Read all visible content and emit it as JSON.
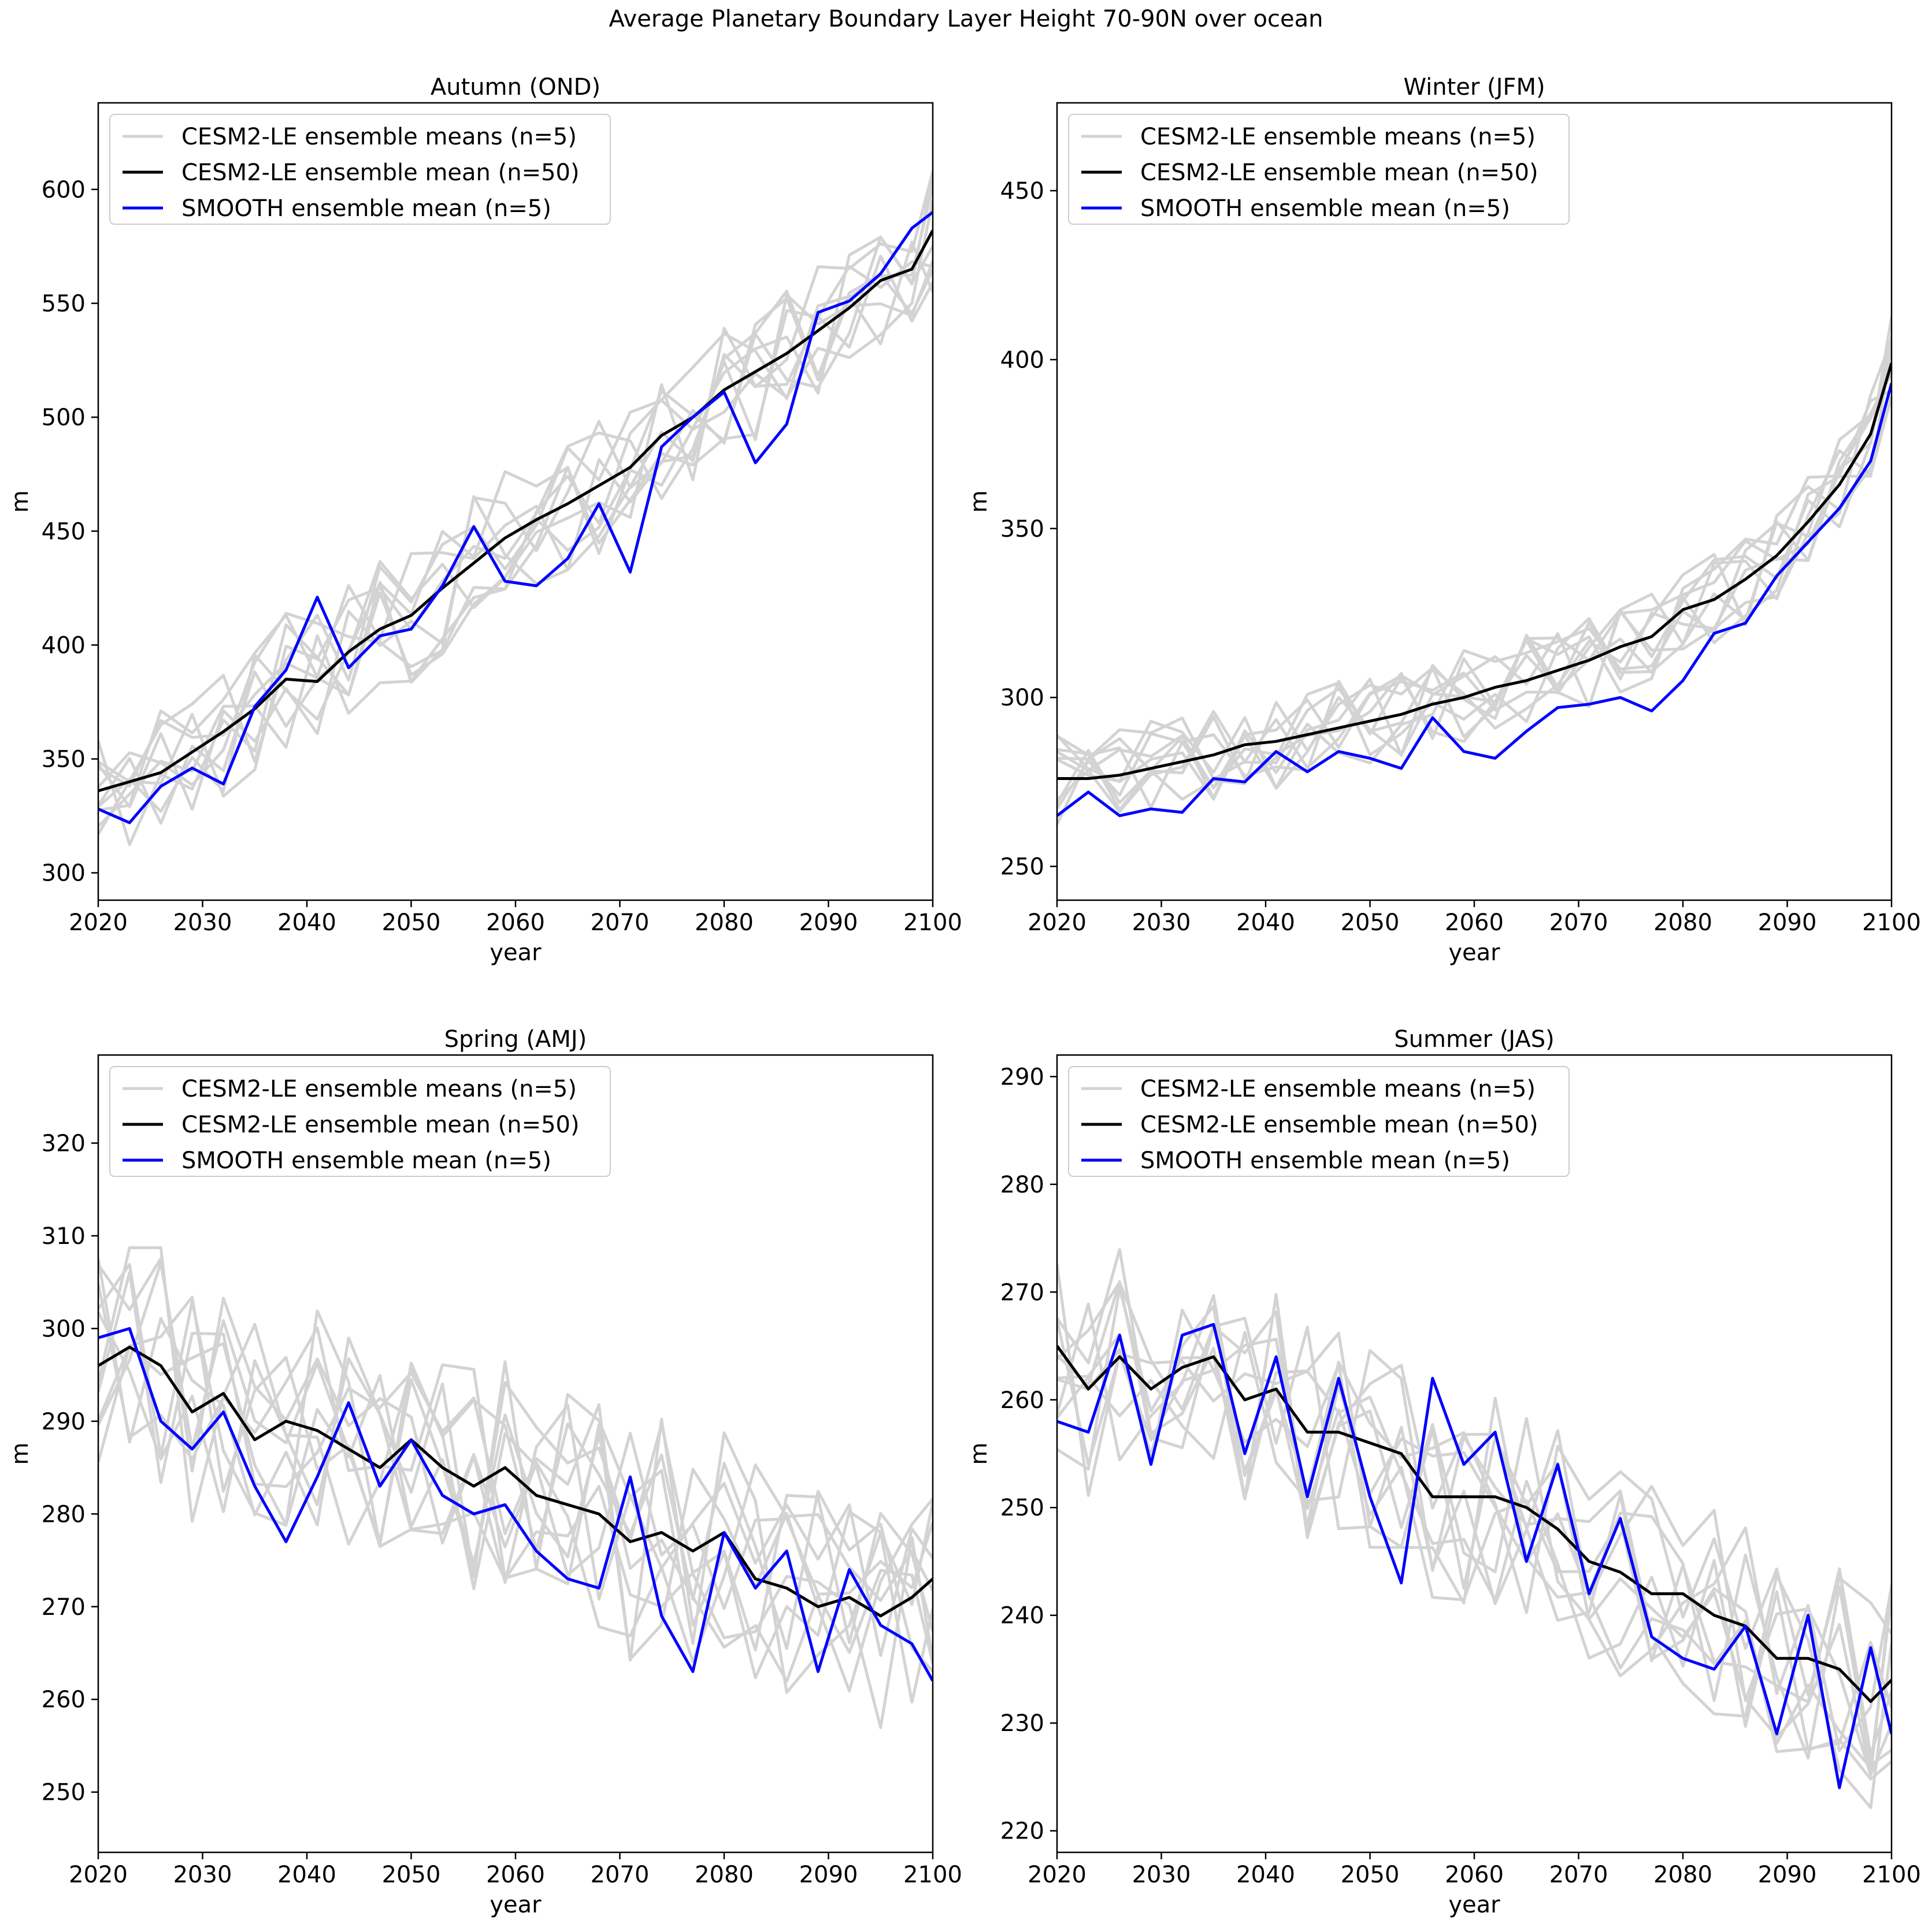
{
  "figure": {
    "title": "Average Planetary Boundary Layer Height 70-90N over ocean"
  },
  "chart_data": [
    {
      "type": "line",
      "title": "Autumn (OND)",
      "xlabel": "year",
      "ylabel": "m",
      "xlim": [
        2020,
        2100
      ],
      "ylim": [
        288,
        638
      ],
      "xticks": [
        "2020",
        "2030",
        "2040",
        "2050",
        "2060",
        "2070",
        "2080",
        "2090",
        "2100"
      ],
      "yticks": [
        "300",
        "350",
        "400",
        "450",
        "500",
        "550",
        "600"
      ],
      "legend": {
        "placement": "upper-left",
        "entries": [
          "CESM2-LE ensemble means (n=5)",
          "CESM2-LE ensemble mean (n=50)",
          "SMOOTH ensemble mean (n=5)"
        ]
      },
      "x": [
        2020,
        2023,
        2026,
        2029,
        2032,
        2035,
        2038,
        2041,
        2044,
        2047,
        2050,
        2053,
        2056,
        2059,
        2062,
        2065,
        2068,
        2071,
        2074,
        2077,
        2080,
        2083,
        2086,
        2089,
        2092,
        2095,
        2098,
        2100
      ],
      "series": [
        {
          "name": "CESM2-LE ensemble mean (n=50)",
          "color": "#000000",
          "values": [
            336,
            340,
            344,
            353,
            362,
            372,
            385,
            384,
            397,
            407,
            413,
            425,
            436,
            447,
            455,
            462,
            470,
            478,
            492,
            500,
            512,
            520,
            528,
            538,
            548,
            560,
            565,
            582
          ]
        },
        {
          "name": "SMOOTH ensemble mean (n=5)",
          "color": "#0000ff",
          "values": [
            328,
            322,
            338,
            346,
            339,
            373,
            389,
            421,
            390,
            404,
            407,
            426,
            452,
            428,
            426,
            438,
            462,
            432,
            487,
            500,
            511,
            480,
            497,
            546,
            551,
            563,
            583,
            590
          ]
        }
      ],
      "gray_band": {
        "name": "CESM2-LE ensemble means (n=5)",
        "color": "#d3d3d3",
        "spread": 30
      }
    },
    {
      "type": "line",
      "title": "Winter (JFM)",
      "xlabel": "year",
      "ylabel": "m",
      "xlim": [
        2020,
        2100
      ],
      "ylim": [
        240,
        476
      ],
      "xticks": [
        "2020",
        "2030",
        "2040",
        "2050",
        "2060",
        "2070",
        "2080",
        "2090",
        "2100"
      ],
      "yticks": [
        "250",
        "300",
        "350",
        "400",
        "450"
      ],
      "legend": {
        "placement": "upper-left",
        "entries": [
          "CESM2-LE ensemble means (n=5)",
          "CESM2-LE ensemble mean (n=50)",
          "SMOOTH ensemble mean (n=5)"
        ]
      },
      "x": [
        2020,
        2023,
        2026,
        2029,
        2032,
        2035,
        2038,
        2041,
        2044,
        2047,
        2050,
        2053,
        2056,
        2059,
        2062,
        2065,
        2068,
        2071,
        2074,
        2077,
        2080,
        2083,
        2086,
        2089,
        2092,
        2095,
        2098,
        2100
      ],
      "series": [
        {
          "name": "CESM2-LE ensemble mean (n=50)",
          "color": "#000000",
          "values": [
            276,
            276,
            277,
            279,
            281,
            283,
            286,
            287,
            289,
            291,
            293,
            295,
            298,
            300,
            303,
            305,
            308,
            311,
            315,
            318,
            326,
            329,
            335,
            342,
            352,
            363,
            378,
            399
          ]
        },
        {
          "name": "SMOOTH ensemble mean (n=5)",
          "color": "#0000ff",
          "values": [
            265,
            272,
            265,
            267,
            266,
            276,
            275,
            284,
            278,
            284,
            282,
            279,
            294,
            284,
            282,
            290,
            297,
            298,
            300,
            296,
            305,
            319,
            322,
            336,
            346,
            356,
            370,
            393
          ]
        }
      ],
      "gray_band": {
        "name": "CESM2-LE ensemble means (n=5)",
        "color": "#d3d3d3",
        "spread": 14
      }
    },
    {
      "type": "line",
      "title": "Spring (AMJ)",
      "xlabel": "year",
      "ylabel": "m",
      "xlim": [
        2020,
        2100
      ],
      "ylim": [
        243.5,
        329.5
      ],
      "xticks": [
        "2020",
        "2030",
        "2040",
        "2050",
        "2060",
        "2070",
        "2080",
        "2090",
        "2100"
      ],
      "yticks": [
        "250",
        "260",
        "270",
        "280",
        "290",
        "300",
        "310",
        "320"
      ],
      "legend": {
        "placement": "upper-left",
        "entries": [
          "CESM2-LE ensemble means (n=5)",
          "CESM2-LE ensemble mean (n=50)",
          "SMOOTH ensemble mean (n=5)"
        ]
      },
      "x": [
        2020,
        2023,
        2026,
        2029,
        2032,
        2035,
        2038,
        2041,
        2044,
        2047,
        2050,
        2053,
        2056,
        2059,
        2062,
        2065,
        2068,
        2071,
        2074,
        2077,
        2080,
        2083,
        2086,
        2089,
        2092,
        2095,
        2098,
        2100
      ],
      "series": [
        {
          "name": "CESM2-LE ensemble mean (n=50)",
          "color": "#000000",
          "values": [
            296,
            298,
            296,
            291,
            293,
            288,
            290,
            289,
            287,
            285,
            288,
            285,
            283,
            285,
            282,
            281,
            280,
            277,
            278,
            276,
            278,
            273,
            272,
            270,
            271,
            269,
            271,
            273
          ]
        },
        {
          "name": "SMOOTH ensemble mean (n=5)",
          "color": "#0000ff",
          "values": [
            299,
            300,
            290,
            287,
            291,
            283,
            277,
            284,
            292,
            283,
            288,
            282,
            280,
            281,
            276,
            273,
            272,
            284,
            269,
            263,
            278,
            272,
            276,
            263,
            274,
            268,
            266,
            262
          ]
        }
      ],
      "gray_band": {
        "name": "CESM2-LE ensemble means (n=5)",
        "color": "#d3d3d3",
        "spread": 13
      }
    },
    {
      "type": "line",
      "title": "Summer (JAS)",
      "xlabel": "year",
      "ylabel": "m",
      "xlim": [
        2020,
        2100
      ],
      "ylim": [
        218,
        292
      ],
      "xticks": [
        "2020",
        "2030",
        "2040",
        "2050",
        "2060",
        "2070",
        "2080",
        "2090",
        "2100"
      ],
      "yticks": [
        "220",
        "230",
        "240",
        "250",
        "260",
        "270",
        "280",
        "290"
      ],
      "legend": {
        "placement": "upper-left",
        "entries": [
          "CESM2-LE ensemble means (n=5)",
          "CESM2-LE ensemble mean (n=50)",
          "SMOOTH ensemble mean (n=5)"
        ]
      },
      "x": [
        2020,
        2023,
        2026,
        2029,
        2032,
        2035,
        2038,
        2041,
        2044,
        2047,
        2050,
        2053,
        2056,
        2059,
        2062,
        2065,
        2068,
        2071,
        2074,
        2077,
        2080,
        2083,
        2086,
        2089,
        2092,
        2095,
        2098,
        2100
      ],
      "series": [
        {
          "name": "CESM2-LE ensemble mean (n=50)",
          "color": "#000000",
          "values": [
            265,
            261,
            264,
            261,
            263,
            264,
            260,
            261,
            257,
            257,
            256,
            255,
            251,
            251,
            251,
            250,
            248,
            245,
            244,
            242,
            242,
            240,
            239,
            236,
            236,
            235,
            232,
            234
          ]
        },
        {
          "name": "SMOOTH ensemble mean (n=5)",
          "color": "#0000ff",
          "values": [
            258,
            257,
            266,
            254,
            266,
            267,
            255,
            264,
            251,
            262,
            251,
            243,
            262,
            254,
            257,
            245,
            254,
            242,
            249,
            238,
            236,
            235,
            239,
            229,
            240,
            224,
            237,
            229
          ]
        }
      ],
      "gray_band": {
        "name": "CESM2-LE ensemble means (n=5)",
        "color": "#d3d3d3",
        "spread": 10
      }
    }
  ]
}
